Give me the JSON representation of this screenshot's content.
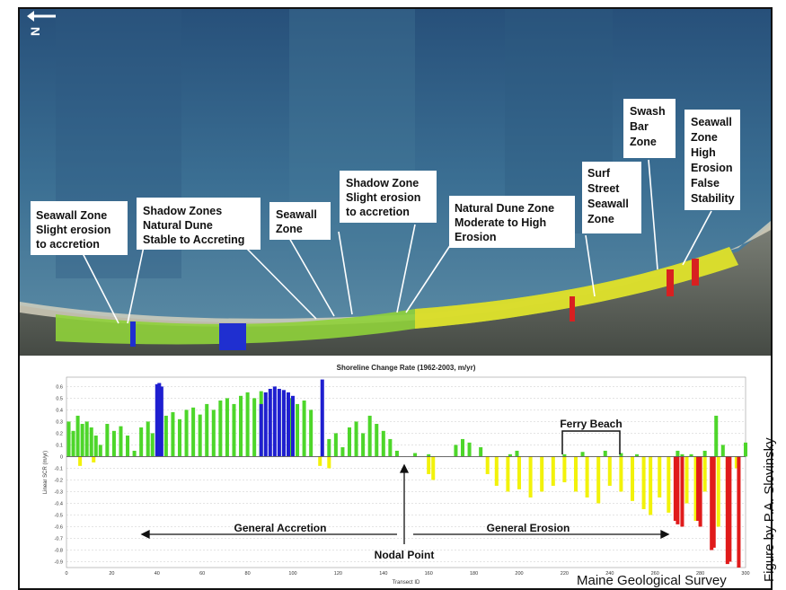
{
  "map": {
    "north_label": "N",
    "zones": [
      {
        "lines": [
          "Seawall Zone",
          "Slight erosion",
          "to accretion"
        ]
      },
      {
        "lines": [
          "Shadow Zones",
          "Natural Dune",
          "Stable to Accreting"
        ]
      },
      {
        "lines": [
          "Seawall",
          "Zone"
        ]
      },
      {
        "lines": [
          "Shadow Zone",
          "Slight erosion",
          "to accretion"
        ]
      },
      {
        "lines": [
          "Natural Dune Zone",
          "Moderate to High",
          "Erosion"
        ]
      },
      {
        "lines": [
          "Surf",
          "Street",
          "Seawall",
          "Zone"
        ]
      },
      {
        "lines": [
          "Swash",
          "Bar",
          "Zone"
        ]
      },
      {
        "lines": [
          "Seawall",
          "Zone",
          "High",
          "Erosion",
          "False",
          "Stability"
        ]
      }
    ]
  },
  "chart_data": {
    "type": "bar",
    "title": "Shoreline Change Rate (1962-2003, m/yr)",
    "xlabel": "Transect ID",
    "ylabel": "Linear SCR (m/yr)",
    "xlim": [
      0,
      300
    ],
    "ylim": [
      -0.95,
      0.68
    ],
    "xticks": [
      "0",
      "20",
      "40",
      "60",
      "80",
      "100",
      "120",
      "140",
      "160",
      "180",
      "200",
      "220",
      "240",
      "260",
      "280",
      "300"
    ],
    "yticks": [
      "0.6",
      "0.5",
      "0.4",
      "0.3",
      "0.2",
      "0.1",
      "0",
      "-0.1",
      "-0.2",
      "-0.3",
      "-0.4",
      "-0.5",
      "-0.6",
      "-0.7",
      "-0.8",
      "-0.9"
    ],
    "grid": true,
    "colors": {
      "accretion": "#4dd62a",
      "high_accretion": "#1f1fd0",
      "erosion": "#f2f20a",
      "high_erosion": "#e01b1b"
    },
    "series": [
      {
        "color_key": "accretion",
        "x": [
          1,
          3,
          5,
          7,
          9,
          11,
          13,
          15,
          18,
          21,
          24,
          27,
          30,
          33,
          36,
          38,
          44,
          47,
          50,
          53,
          56,
          59,
          62,
          65,
          68,
          71,
          74,
          77,
          80,
          83,
          86,
          96,
          99,
          102,
          105,
          108,
          116,
          119,
          122,
          125,
          128,
          131,
          134,
          137,
          140,
          143,
          146,
          154,
          160,
          172,
          175,
          178,
          183,
          196,
          199,
          220,
          228,
          238,
          245,
          252,
          270,
          272,
          276,
          282,
          287,
          290,
          300
        ],
        "values": [
          0.3,
          0.22,
          0.35,
          0.28,
          0.3,
          0.25,
          0.18,
          0.1,
          0.28,
          0.22,
          0.26,
          0.18,
          0.05,
          0.25,
          0.3,
          0.2,
          0.35,
          0.38,
          0.32,
          0.4,
          0.42,
          0.36,
          0.45,
          0.4,
          0.48,
          0.5,
          0.45,
          0.52,
          0.55,
          0.5,
          0.56,
          0.55,
          0.5,
          0.45,
          0.48,
          0.4,
          0.15,
          0.2,
          0.08,
          0.25,
          0.3,
          0.2,
          0.35,
          0.28,
          0.22,
          0.15,
          0.05,
          0.03,
          0.02,
          0.1,
          0.15,
          0.12,
          0.08,
          0.02,
          0.05,
          0.02,
          0.04,
          0.05,
          0.03,
          0.02,
          0.05,
          0.02,
          0.02,
          0.05,
          0.35,
          0.1,
          0.12
        ]
      },
      {
        "color_key": "high_accretion",
        "x": [
          40,
          41,
          42,
          86,
          88,
          90,
          92,
          94,
          96,
          98,
          100,
          113
        ],
        "values": [
          0.62,
          0.63,
          0.6,
          0.45,
          0.55,
          0.58,
          0.6,
          0.58,
          0.57,
          0.55,
          0.52,
          0.66
        ]
      },
      {
        "color_key": "erosion",
        "x": [
          6,
          12,
          112,
          116,
          160,
          162,
          186,
          190,
          195,
          200,
          205,
          210,
          215,
          220,
          225,
          230,
          235,
          240,
          245,
          250,
          255,
          258,
          262,
          266,
          274,
          278,
          282,
          288,
          292,
          296
        ],
        "values": [
          -0.08,
          -0.05,
          -0.08,
          -0.1,
          -0.15,
          -0.2,
          -0.15,
          -0.25,
          -0.3,
          -0.28,
          -0.35,
          -0.3,
          -0.25,
          -0.22,
          -0.3,
          -0.35,
          -0.4,
          -0.25,
          -0.3,
          -0.38,
          -0.45,
          -0.5,
          -0.35,
          -0.48,
          -0.4,
          -0.55,
          -0.3,
          -0.6,
          -0.45,
          -0.1
        ]
      },
      {
        "color_key": "high_erosion",
        "x": [
          269,
          270,
          272,
          279,
          280,
          285,
          286,
          292,
          293,
          297
        ],
        "values": [
          -0.55,
          -0.58,
          -0.6,
          -0.55,
          -0.6,
          -0.8,
          -0.78,
          -0.92,
          -0.9,
          -0.95
        ]
      }
    ],
    "annotations": [
      {
        "text": "Ferry Beach"
      },
      {
        "text": "General Accretion"
      },
      {
        "text": "General Erosion"
      },
      {
        "text": "Nodal Point"
      },
      {
        "text": "Maine Geological Survey"
      }
    ]
  },
  "credit": "Figure by P.A. Slovinsky"
}
